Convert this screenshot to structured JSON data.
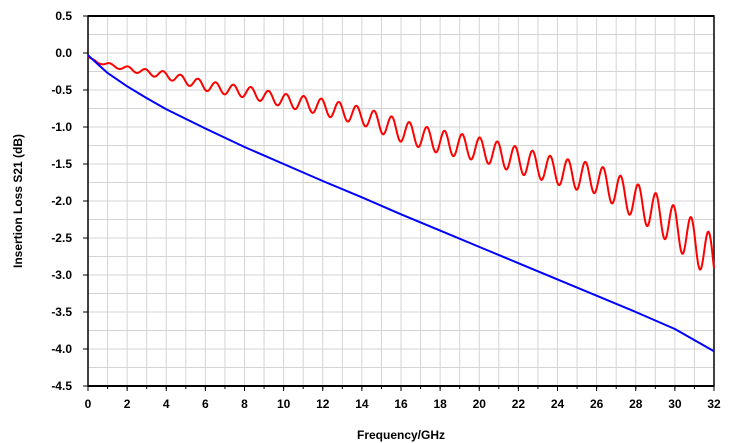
{
  "chart_data": {
    "type": "line",
    "title": "",
    "xlabel": "Frequency/GHz",
    "ylabel": "Insertion  Loss S21 (dB)",
    "xlim": [
      0,
      32
    ],
    "ylim": [
      -4.5,
      0.5
    ],
    "grid": true,
    "legend": "none",
    "x_ticks": [
      "0",
      "2",
      "4",
      "6",
      "8",
      "10",
      "12",
      "14",
      "16",
      "18",
      "20",
      "22",
      "24",
      "26",
      "28",
      "30",
      "32"
    ],
    "y_ticks": [
      "0.5",
      "0.0",
      "-0.5",
      "-1.0",
      "-1.5",
      "-2.0",
      "-2.5",
      "-3.0",
      "-3.5",
      "-4.0",
      "-4.5"
    ],
    "series": [
      {
        "color": "#ff0000",
        "x": [
          0,
          0.5,
          1,
          1.5,
          2,
          3,
          4,
          5,
          6,
          7,
          8,
          9,
          10,
          11,
          12,
          13,
          14,
          15,
          16,
          17,
          18,
          19,
          20,
          21,
          22,
          23,
          24,
          25,
          26,
          27,
          28,
          29,
          30,
          31,
          32
        ],
        "y": [
          -0.05,
          -0.13,
          -0.15,
          -0.19,
          -0.21,
          -0.26,
          -0.3,
          -0.37,
          -0.44,
          -0.49,
          -0.52,
          -0.58,
          -0.64,
          -0.68,
          -0.73,
          -0.79,
          -0.85,
          -0.95,
          -1.05,
          -1.13,
          -1.2,
          -1.25,
          -1.3,
          -1.37,
          -1.45,
          -1.52,
          -1.6,
          -1.65,
          -1.7,
          -1.85,
          -2.0,
          -2.15,
          -2.35,
          -2.55,
          -2.8
        ],
        "ripple_amplitude": [
          0.0,
          0.01,
          0.02,
          0.02,
          0.03,
          0.04,
          0.05,
          0.06,
          0.07,
          0.07,
          0.08,
          0.08,
          0.09,
          0.1,
          0.11,
          0.12,
          0.12,
          0.14,
          0.15,
          0.15,
          0.16,
          0.16,
          0.16,
          0.17,
          0.18,
          0.18,
          0.18,
          0.2,
          0.2,
          0.22,
          0.24,
          0.26,
          0.28,
          0.3,
          0.32
        ],
        "ripple_period_ghz": 0.9
      },
      {
        "color": "#0000ff",
        "x": [
          0,
          0.5,
          1,
          2,
          3,
          4,
          5,
          6,
          8,
          10,
          12,
          14,
          16,
          18,
          20,
          22,
          24,
          26,
          28,
          30,
          32
        ],
        "y": [
          -0.03,
          -0.15,
          -0.27,
          -0.45,
          -0.61,
          -0.76,
          -0.89,
          -1.02,
          -1.27,
          -1.5,
          -1.73,
          -1.95,
          -2.18,
          -2.4,
          -2.62,
          -2.84,
          -3.06,
          -3.28,
          -3.5,
          -3.73,
          -4.03
        ]
      }
    ]
  }
}
